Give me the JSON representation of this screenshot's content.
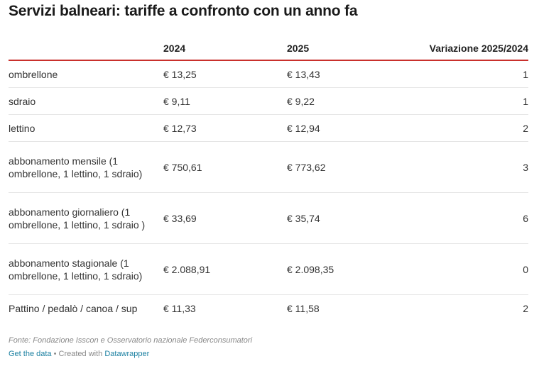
{
  "title": "Servizi balneari: tariffe a confronto con un anno fa",
  "columns": [
    "",
    "2024",
    "2025",
    "Variazione 2025/2024"
  ],
  "rows": [
    {
      "label": "ombrellone",
      "v2024": "€ 13,25",
      "v2025": "€ 13,43",
      "var": "1"
    },
    {
      "label": "sdraio",
      "v2024": "€ 9,11",
      "v2025": "€ 9,22",
      "var": "1"
    },
    {
      "label": "lettino",
      "v2024": "€ 12,73",
      "v2025": "€ 12,94",
      "var": "2"
    },
    {
      "label": "abbonamento mensile (1 ombrellone, 1 lettino, 1 sdraio)",
      "v2024": "€ 750,61",
      "v2025": "€ 773,62",
      "var": "3"
    },
    {
      "label": "abbonamento giornaliero (1 ombrellone, 1 lettino, 1 sdraio )",
      "v2024": "€ 33,69",
      "v2025": "€ 35,74",
      "var": "6"
    },
    {
      "label": "abbonamento stagionale (1 ombrellone, 1 lettino, 1 sdraio)",
      "v2024": "€ 2.088,91",
      "v2025": "€ 2.098,35",
      "var": "0"
    },
    {
      "label": "Pattino / pedalò / canoa / sup",
      "v2024": "€ 11,33",
      "v2025": "€ 11,58",
      "var": "2"
    }
  ],
  "footer": {
    "source": "Fonte: Fondazione Isscon e Osservatorio nazionale Federconsumatori",
    "get_data": "Get the data",
    "separator": " • Created with ",
    "tool": "Datawrapper"
  },
  "chart_data": {
    "type": "table",
    "title": "Servizi balneari: tariffe a confronto con un anno fa",
    "columns": [
      "",
      "2024",
      "2025",
      "Variazione 2025/2024"
    ],
    "rows": [
      [
        "ombrellone",
        13.25,
        13.43,
        1
      ],
      [
        "sdraio",
        9.11,
        9.22,
        1
      ],
      [
        "lettino",
        12.73,
        12.94,
        2
      ],
      [
        "abbonamento mensile (1 ombrellone, 1 lettino, 1 sdraio)",
        750.61,
        773.62,
        3
      ],
      [
        "abbonamento giornaliero (1 ombrellone, 1 lettino, 1 sdraio )",
        33.69,
        35.74,
        6
      ],
      [
        "abbonamento stagionale (1 ombrellone, 1 lettino, 1 sdraio)",
        2088.91,
        2098.35,
        0
      ],
      [
        "Pattino / pedalò / canoa / sup",
        11.33,
        11.58,
        2
      ]
    ]
  }
}
